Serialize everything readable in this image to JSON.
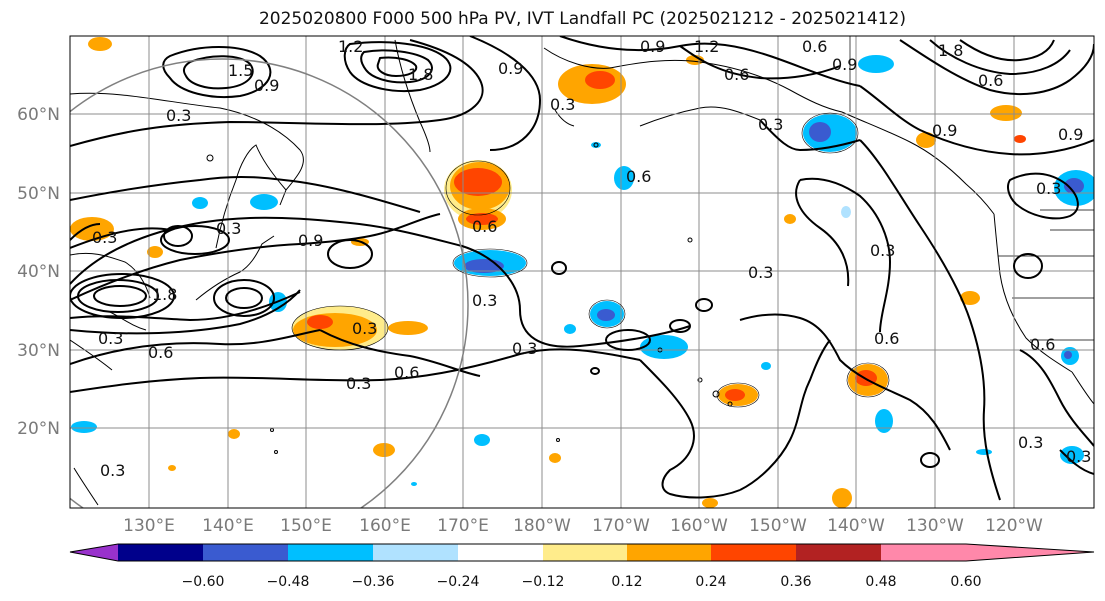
{
  "title": "2025020800 F000 500 hPa PV, IVT Landfall PC (2025021212 - 2025021412)",
  "lat_labels": [
    "60°N",
    "50°N",
    "40°N",
    "30°N",
    "20°N"
  ],
  "lon_labels": [
    "130°E",
    "140°E",
    "150°E",
    "160°E",
    "170°E",
    "180°W",
    "170°W",
    "160°W",
    "150°W",
    "140°W",
    "130°W",
    "120°W"
  ],
  "colorbar": {
    "ticks": [
      "−0.60",
      "−0.48",
      "−0.36",
      "−0.24",
      "−0.12",
      "0.12",
      "0.24",
      "0.36",
      "0.48",
      "0.60"
    ],
    "colors": [
      "#9932cc",
      "#00008b",
      "#3a5bd0",
      "#00bfff",
      "#b0e2ff",
      "#ffffff",
      "#ffec8b",
      "#ffa500",
      "#ff4500",
      "#b22222",
      "#ff88aa"
    ]
  },
  "contour_labels": [
    "0.3",
    "0.6",
    "0.9",
    "1.2",
    "1.5",
    "1.8"
  ],
  "colors": {
    "contour": "#000000",
    "grid": "#8c8c8c",
    "coast": "#000000",
    "circle": "#808080"
  }
}
